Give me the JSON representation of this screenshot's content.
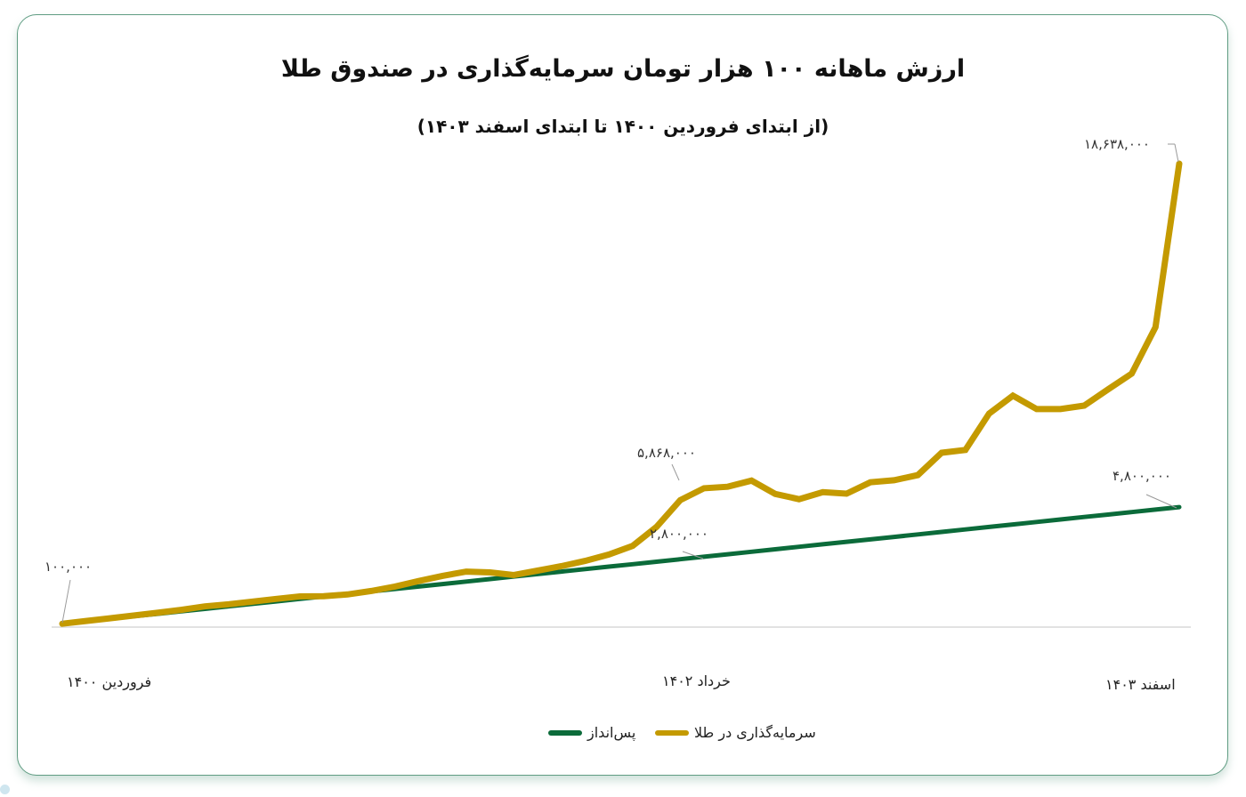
{
  "colors": {
    "gold": "#C49A00",
    "green": "#0B6B3A",
    "card_border": "#5F9C82",
    "baseline": "#D9D9D9",
    "leader": "#999999"
  },
  "chart_data": {
    "type": "line",
    "title": "ارزش ماهانه ۱۰۰ هزار تومان سرمایه‌گذاری در صندوق طلا",
    "subtitle": "(از ابتدای فروردین ۱۴۰۰ تا ابتدای اسفند ۱۴۰۳)",
    "xlabel": "",
    "ylabel": "",
    "grid": false,
    "legend_position": "bottom",
    "x_ticks": [
      {
        "index": 0,
        "label": "فروردین ۱۴۰۰"
      },
      {
        "index": 26,
        "label": "خرداد  ۱۴۰۲"
      },
      {
        "index": 47,
        "label": "اسفند ۱۴۰۳"
      }
    ],
    "x_count": 48,
    "ylim": [
      0,
      18638000
    ],
    "series": [
      {
        "name": "سرمایه‌گذاری در طلا",
        "color": "#C49A00",
        "values": [
          100000,
          210000,
          320000,
          430000,
          540000,
          660000,
          800000,
          880000,
          990000,
          1100000,
          1200000,
          1210000,
          1280000,
          1420000,
          1600000,
          1820000,
          2030000,
          2200000,
          2170000,
          2060000,
          2240000,
          2420000,
          2630000,
          2890000,
          3240000,
          4000000,
          5080000,
          5560000,
          5620000,
          5868000,
          5330000,
          5120000,
          5400000,
          5340000,
          5800000,
          5880000,
          6090000,
          6990000,
          7100000,
          8570000,
          9290000,
          8750000,
          8750000,
          8890000,
          9540000,
          10180000,
          12050000,
          18638000
        ]
      },
      {
        "name": "پس‌انداز",
        "color": "#0B6B3A",
        "values": [
          100000,
          200000,
          300000,
          400000,
          500000,
          600000,
          700000,
          800000,
          900000,
          1000000,
          1100000,
          1200000,
          1300000,
          1400000,
          1500000,
          1600000,
          1700000,
          1800000,
          1900000,
          2000000,
          2100000,
          2200000,
          2300000,
          2400000,
          2500000,
          2600000,
          2700000,
          2800000,
          2900000,
          3000000,
          3100000,
          3200000,
          3300000,
          3400000,
          3500000,
          3600000,
          3700000,
          3800000,
          3900000,
          4000000,
          4100000,
          4200000,
          4300000,
          4400000,
          4500000,
          4600000,
          4700000,
          4800000
        ]
      }
    ],
    "annotations": [
      {
        "series": 0,
        "index": 0,
        "label": "۱۰۰,۰۰۰"
      },
      {
        "series": 0,
        "index": 29,
        "label": "۵,۸۶۸,۰۰۰"
      },
      {
        "series": 0,
        "index": 47,
        "label": "۱۸,۶۳۸,۰۰۰"
      },
      {
        "series": 1,
        "index": 27,
        "label": "۲,۸۰۰,۰۰۰"
      },
      {
        "series": 1,
        "index": 47,
        "label": "۴,۸۰۰,۰۰۰"
      }
    ]
  },
  "header": {
    "title": "ارزش ماهانه ۱۰۰ هزار تومان سرمایه‌گذاری در صندوق طلا",
    "subtitle": "(از ابتدای فروردین ۱۴۰۰ تا ابتدای اسفند ۱۴۰۳)"
  },
  "axis": {
    "tick_start": "فروردین ۱۴۰۰",
    "tick_mid": "خرداد  ۱۴۰۲",
    "tick_end": "اسفند ۱۴۰۳"
  },
  "labels": {
    "start": "۱۰۰,۰۰۰",
    "gold_peak": "۵,۸۶۸,۰۰۰",
    "gold_end": "۱۸,۶۳۸,۰۰۰",
    "save_mid": "۲,۸۰۰,۰۰۰",
    "save_end": "۴,۸۰۰,۰۰۰"
  },
  "legend": {
    "gold": "سرمایه‌گذاری در طلا",
    "savings": "پس‌انداز"
  }
}
